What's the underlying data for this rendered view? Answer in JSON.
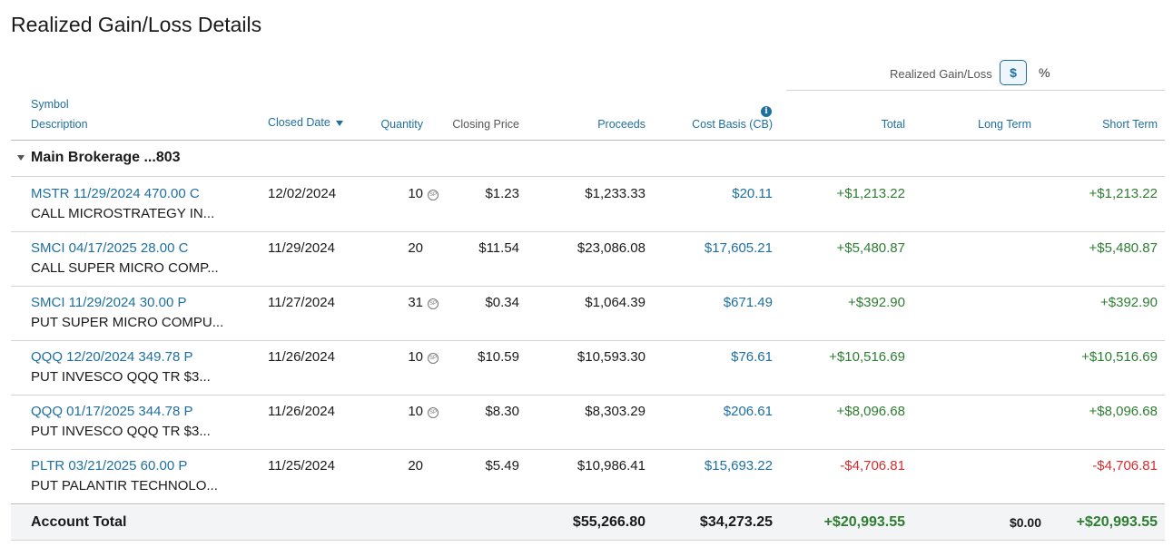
{
  "title": "Realized Gain/Loss Details",
  "toggle": {
    "label": "Realized Gain/Loss",
    "dollar": "$",
    "percent": "%"
  },
  "headers": {
    "symbol": "Symbol",
    "description": "Description",
    "closed_date": "Closed Date",
    "quantity": "Quantity",
    "closing_price": "Closing Price",
    "proceeds": "Proceeds",
    "cost_basis": "Cost Basis (CB)",
    "total": "Total",
    "long_term": "Long Term",
    "short_term": "Short Term"
  },
  "info_icon_glyph": "i",
  "group": {
    "label": "Main Brokerage ...803"
  },
  "rows": [
    {
      "symbol": "MSTR 11/29/2024 470.00 C",
      "description": "CALL MICROSTRATEGY IN...",
      "closed_date": "12/02/2024",
      "quantity": "10",
      "has_qty_icon": true,
      "closing_price": "$1.23",
      "proceeds": "$1,233.33",
      "cost_basis": "$20.11",
      "total": "+$1,213.22",
      "long_term": "",
      "short_term": "+$1,213.22",
      "sign": "pos"
    },
    {
      "symbol": "SMCI 04/17/2025 28.00 C",
      "description": "CALL SUPER MICRO COMP...",
      "closed_date": "11/29/2024",
      "quantity": "20",
      "has_qty_icon": false,
      "closing_price": "$11.54",
      "proceeds": "$23,086.08",
      "cost_basis": "$17,605.21",
      "total": "+$5,480.87",
      "long_term": "",
      "short_term": "+$5,480.87",
      "sign": "pos"
    },
    {
      "symbol": "SMCI 11/29/2024 30.00 P",
      "description": "PUT SUPER MICRO COMPU...",
      "closed_date": "11/27/2024",
      "quantity": "31",
      "has_qty_icon": true,
      "closing_price": "$0.34",
      "proceeds": "$1,064.39",
      "cost_basis": "$671.49",
      "total": "+$392.90",
      "long_term": "",
      "short_term": "+$392.90",
      "sign": "pos"
    },
    {
      "symbol": "QQQ 12/20/2024 349.78 P",
      "description": "PUT INVESCO QQQ TR $3...",
      "closed_date": "11/26/2024",
      "quantity": "10",
      "has_qty_icon": true,
      "closing_price": "$10.59",
      "proceeds": "$10,593.30",
      "cost_basis": "$76.61",
      "total": "+$10,516.69",
      "long_term": "",
      "short_term": "+$10,516.69",
      "sign": "pos"
    },
    {
      "symbol": "QQQ 01/17/2025 344.78 P",
      "description": "PUT INVESCO QQQ TR $3...",
      "closed_date": "11/26/2024",
      "quantity": "10",
      "has_qty_icon": true,
      "closing_price": "$8.30",
      "proceeds": "$8,303.29",
      "cost_basis": "$206.61",
      "total": "+$8,096.68",
      "long_term": "",
      "short_term": "+$8,096.68",
      "sign": "pos"
    },
    {
      "symbol": "PLTR 03/21/2025 60.00 P",
      "description": "PUT PALANTIR TECHNOLO...",
      "closed_date": "11/25/2024",
      "quantity": "20",
      "has_qty_icon": false,
      "closing_price": "$5.49",
      "proceeds": "$10,986.41",
      "cost_basis": "$15,693.22",
      "total": "-$4,706.81",
      "long_term": "",
      "short_term": "-$4,706.81",
      "sign": "neg"
    }
  ],
  "qty_icon_glyph": "SP",
  "account_total": {
    "label": "Account Total",
    "proceeds": "$55,266.80",
    "cost_basis": "$34,273.25",
    "total": "+$20,993.55",
    "long_term": "$0.00",
    "short_term": "+$20,993.55"
  },
  "colors": {
    "link": "#1f6f9e",
    "positive": "#2e7d32",
    "negative": "#d32f2f"
  }
}
